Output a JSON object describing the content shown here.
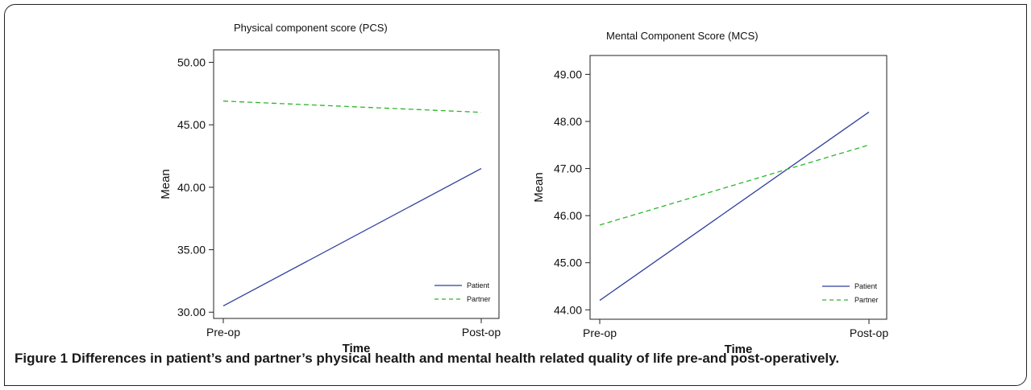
{
  "figure": {
    "label": "Figure 1",
    "caption": "Differences in patient’s and partner’s physical health and mental health related quality of life pre-and post-operatively."
  },
  "colors": {
    "patient": "#2f3f9e",
    "partner": "#2db52d",
    "axis": "#222222"
  },
  "chart_data": [
    {
      "type": "line",
      "title": "Physical component score (PCS)",
      "xlabel": "Time",
      "ylabel": "Mean",
      "categories": [
        "Pre-op",
        "Post-op"
      ],
      "ylim": [
        29.5,
        51.0
      ],
      "yticks": [
        "30.00",
        "35.00",
        "40.00",
        "45.00",
        "50.00"
      ],
      "ytick_values": [
        30,
        35,
        40,
        45,
        50
      ],
      "series": [
        {
          "name": "Patient",
          "values": [
            30.5,
            41.5
          ],
          "style": "solid"
        },
        {
          "name": "Partner",
          "values": [
            46.9,
            46.0
          ],
          "style": "dashed"
        }
      ],
      "legend": "bottom-right",
      "grid": false
    },
    {
      "type": "line",
      "title": "Mental Component Score (MCS)",
      "xlabel": "Time",
      "ylabel": "Mean",
      "categories": [
        "Pre-op",
        "Post-op"
      ],
      "ylim": [
        43.8,
        49.4
      ],
      "yticks": [
        "44.00",
        "45.00",
        "46.00",
        "47.00",
        "48.00",
        "49.00"
      ],
      "ytick_values": [
        44,
        45,
        46,
        47,
        48,
        49
      ],
      "series": [
        {
          "name": "Patient",
          "values": [
            44.2,
            48.2
          ],
          "style": "solid"
        },
        {
          "name": "Partner",
          "values": [
            45.8,
            47.5
          ],
          "style": "dashed"
        }
      ],
      "legend": "bottom-right",
      "grid": false
    }
  ]
}
